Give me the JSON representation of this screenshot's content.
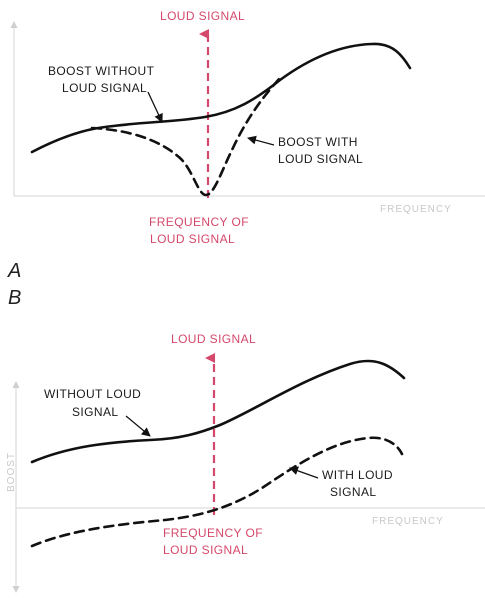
{
  "colors": {
    "ink": "#111111",
    "accent": "#d4486b",
    "faint": "#cfcfcf"
  },
  "diagram_a": {
    "panel_label": "A",
    "top_label": "LOUD SIGNAL",
    "curve_solid_label_line1": "BOOST WITHOUT",
    "curve_solid_label_line2": "LOUD SIGNAL",
    "curve_dashed_label_line1": "BOOST WITH",
    "curve_dashed_label_line2": "LOUD SIGNAL",
    "freq_label_line1": "FREQUENCY OF",
    "freq_label_line2": "LOUD SIGNAL",
    "x_axis_label": "FREQUENCY"
  },
  "diagram_b": {
    "panel_label": "B",
    "top_label": "LOUD SIGNAL",
    "curve_solid_label_line1": "WITHOUT LOUD",
    "curve_solid_label_line2": "SIGNAL",
    "curve_dashed_label_line1": "WITH LOUD",
    "curve_dashed_label_line2": "SIGNAL",
    "freq_label_line1": "FREQUENCY OF",
    "freq_label_line2": "LOUD SIGNAL",
    "y_axis_label": "BOOST",
    "x_axis_label": "FREQUENCY"
  }
}
